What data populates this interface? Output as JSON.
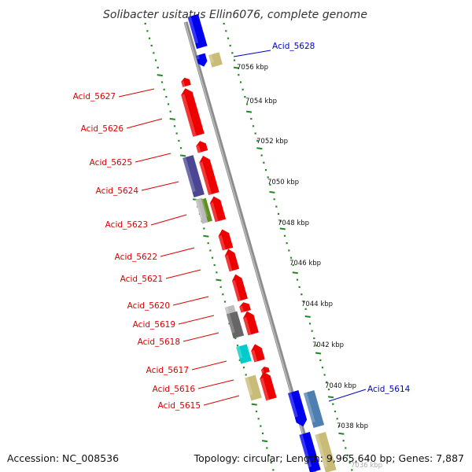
{
  "title": "Solibacter usitatus Ellin6076, complete genome",
  "footer": {
    "accession": "Accession: NC_008536",
    "topology": "Topology: circular; Length: 9,965,640 bp; Genes: 7,887"
  },
  "colors": {
    "forward_strand_label": "#dd0000",
    "reverse_strand_label": "#0000cc",
    "backbone": "#8c8c8c",
    "ticks": "#228822"
  },
  "scale_labels": [
    "7056 kbp",
    "7054 kbp",
    "7052 kbp",
    "7050 kbp",
    "7048 kbp",
    "7046 kbp",
    "7044 kbp",
    "7042 kbp",
    "7040 kbp",
    "7038 kbp",
    "7036 kbp"
  ],
  "gene_labels": [
    {
      "name": "Acid_5628",
      "strand": "reverse"
    },
    {
      "name": "Acid_5627",
      "strand": "forward"
    },
    {
      "name": "Acid_5626",
      "strand": "forward"
    },
    {
      "name": "Acid_5625",
      "strand": "forward"
    },
    {
      "name": "Acid_5624",
      "strand": "forward"
    },
    {
      "name": "Acid_5623",
      "strand": "forward"
    },
    {
      "name": "Acid_5622",
      "strand": "forward"
    },
    {
      "name": "Acid_5621",
      "strand": "forward"
    },
    {
      "name": "Acid_5620",
      "strand": "forward"
    },
    {
      "name": "Acid_5619",
      "strand": "forward"
    },
    {
      "name": "Acid_5618",
      "strand": "forward"
    },
    {
      "name": "Acid_5617",
      "strand": "forward"
    },
    {
      "name": "Acid_5616",
      "strand": "forward"
    },
    {
      "name": "Acid_5615",
      "strand": "forward"
    },
    {
      "name": "Acid_5614",
      "strand": "reverse"
    }
  ],
  "features": [
    {
      "name": "blue-reverse",
      "color": "#0000ee"
    },
    {
      "name": "khaki",
      "color": "#c8bc78"
    },
    {
      "name": "red-forward",
      "color": "#ee0000"
    },
    {
      "name": "slate-purple",
      "color": "#4a4694"
    },
    {
      "name": "olive-green",
      "color": "#5f8f1f"
    },
    {
      "name": "gray",
      "color": "#bbbbbb"
    },
    {
      "name": "dark-gray",
      "color": "#666666"
    },
    {
      "name": "cyan",
      "color": "#00cccc"
    },
    {
      "name": "steel-blue",
      "color": "#4f7fb0"
    }
  ]
}
